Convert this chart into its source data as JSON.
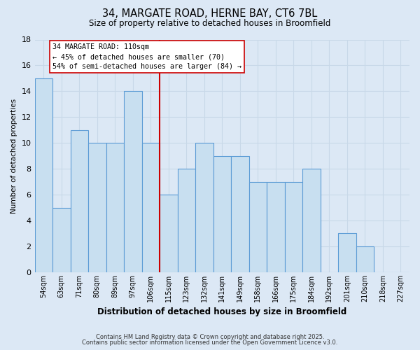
{
  "title": "34, MARGATE ROAD, HERNE BAY, CT6 7BL",
  "subtitle": "Size of property relative to detached houses in Broomfield",
  "xlabel": "Distribution of detached houses by size in Broomfield",
  "ylabel": "Number of detached properties",
  "footer_lines": [
    "Contains HM Land Registry data © Crown copyright and database right 2025.",
    "Contains public sector information licensed under the Open Government Licence v3.0."
  ],
  "bin_labels": [
    "54sqm",
    "63sqm",
    "71sqm",
    "80sqm",
    "89sqm",
    "97sqm",
    "106sqm",
    "115sqm",
    "123sqm",
    "132sqm",
    "141sqm",
    "149sqm",
    "158sqm",
    "166sqm",
    "175sqm",
    "184sqm",
    "192sqm",
    "201sqm",
    "210sqm",
    "218sqm",
    "227sqm"
  ],
  "bar_values": [
    15,
    5,
    11,
    10,
    10,
    14,
    10,
    6,
    8,
    10,
    9,
    9,
    7,
    7,
    7,
    8,
    0,
    3,
    2,
    0,
    0
  ],
  "bar_fill_color": "#c8dff0",
  "bar_edge_color": "#5b9bd5",
  "background_color": "#dce8f5",
  "grid_color": "#c8d8e8",
  "vline_x": 6.5,
  "vline_color": "#cc0000",
  "annotation_text": "34 MARGATE ROAD: 110sqm\n← 45% of detached houses are smaller (70)\n54% of semi-detached houses are larger (84) →",
  "annotation_box_color": "#ffffff",
  "annotation_box_edge_color": "#cc0000",
  "ylim": [
    0,
    18
  ],
  "yticks": [
    0,
    2,
    4,
    6,
    8,
    10,
    12,
    14,
    16,
    18
  ]
}
